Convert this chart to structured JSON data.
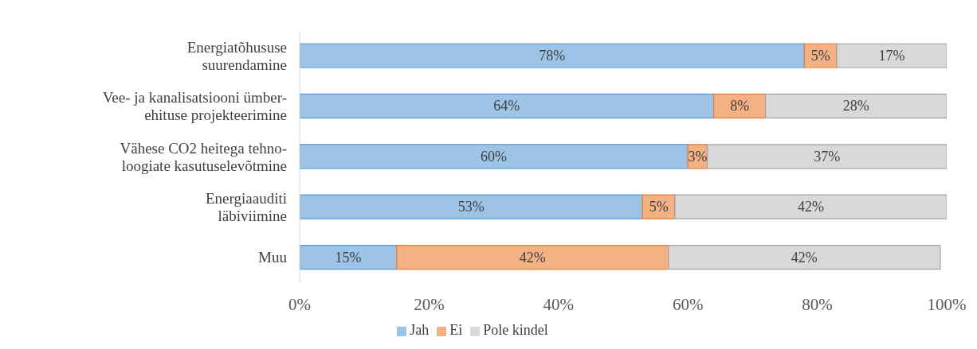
{
  "chart_data": {
    "type": "bar",
    "orientation": "horizontal",
    "stacked": true,
    "categories": [
      "Energiatõhususe\nsuurendamine",
      "Vee- ja kanalisatsiooni ümber-\nehituse projekteerimine ",
      "Vähese CO2 heitega tehno-\nloogiate kasutuselevõtmine",
      "Energiaauditi\nläbiviimine",
      "Muu"
    ],
    "series": [
      {
        "name": "Jah",
        "color": "#9dc3e6",
        "values": [
          78,
          64,
          60,
          53,
          15
        ],
        "value_labels": [
          "78%",
          "64%",
          "60%",
          "53%",
          "15%"
        ]
      },
      {
        "name": "Ei",
        "color": "#f4b183",
        "values": [
          5,
          8,
          3,
          5,
          42
        ],
        "value_labels": [
          "5%",
          "8%",
          "3%",
          "5%",
          "42%"
        ]
      },
      {
        "name": "Pole kindel",
        "color": "#d9d9d9",
        "values": [
          17,
          28,
          37,
          42,
          42
        ],
        "value_labels": [
          "17%",
          "28%",
          "37%",
          "42%",
          "42%"
        ]
      }
    ],
    "xlim": [
      0,
      100
    ],
    "xticks": [
      {
        "value": 0,
        "label": "0%"
      },
      {
        "value": 20,
        "label": "20%"
      },
      {
        "value": 40,
        "label": "40%"
      },
      {
        "value": 60,
        "label": "60%"
      },
      {
        "value": 80,
        "label": "80%"
      },
      {
        "value": 100,
        "label": "100%"
      }
    ],
    "grid": false,
    "legend": "bottom"
  }
}
